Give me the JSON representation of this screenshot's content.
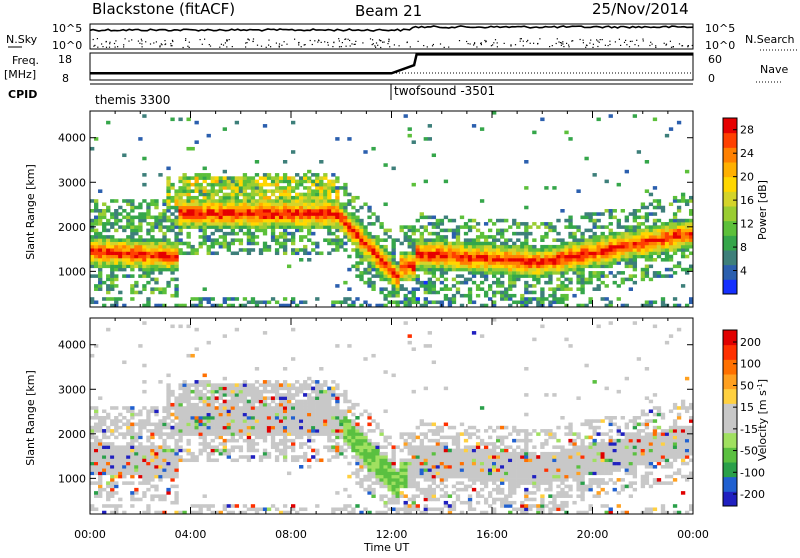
{
  "header": {
    "title": "Blackstone (fitACF)",
    "beam": "Beam 21",
    "date": "25/Nov/2014"
  },
  "param_panels": {
    "nsky_label": "N.Sky",
    "nsky_ticks": [
      "10^5",
      "10^0"
    ],
    "nsearch_label": "N.Search",
    "nsearch_ticks": [
      "10^5",
      "10^0"
    ],
    "freq_label": "Freq.",
    "freq_unit": "[MHz]",
    "freq_ticks": [
      "18",
      "8"
    ],
    "nave_label": "Nave",
    "nave_ticks": [
      "60",
      "0"
    ],
    "cpid_label": "CPID",
    "modes": [
      {
        "name": "themis 3300",
        "start_hour": 0
      },
      {
        "name": "twofsound -3501",
        "start_hour": 12.0
      }
    ],
    "freq_series": [
      {
        "hour": 0,
        "mhz": 10.5
      },
      {
        "hour": 12.0,
        "mhz": 10.5
      },
      {
        "hour": 12.9,
        "mhz": 13.5
      },
      {
        "hour": 13.0,
        "mhz": 17.5
      },
      {
        "hour": 24,
        "mhz": 17.5
      }
    ]
  },
  "chart_data": [
    {
      "type": "heatmap",
      "name": "Power",
      "xlabel": "Time UT",
      "ylabel": "Slant Range [km]",
      "xlim": [
        0,
        24
      ],
      "ylim": [
        200,
        4600
      ],
      "x_ticks": [
        "00:00",
        "04:00",
        "08:00",
        "12:00",
        "16:00",
        "20:00",
        "00:00"
      ],
      "y_ticks": [
        1000,
        2000,
        3000,
        4000
      ],
      "colorbar": {
        "label": "Power [dB]",
        "ticks": [
          4,
          8,
          12,
          16,
          20,
          24,
          28
        ],
        "range": [
          0,
          30
        ],
        "colors": [
          "#1530ff",
          "#2b5fae",
          "#3d7f7a",
          "#35a64a",
          "#5cc03a",
          "#9acd32",
          "#d4d42a",
          "#ffd700",
          "#ffb000",
          "#ff8000",
          "#ff4000",
          "#e60000"
        ]
      },
      "features": [
        {
          "desc": "main band",
          "hour_start": 0,
          "hour_end": 3,
          "range_km": [
            1200,
            1700
          ],
          "power_db": 22
        },
        {
          "desc": "midnight dip",
          "hour_start": 10.0,
          "hour_end": 12.5,
          "range_km": [
            700,
            1500
          ],
          "power_db": 18
        },
        {
          "desc": "afternoon band",
          "hour_start": 13,
          "hour_end": 23,
          "range_km": [
            900,
            1900
          ],
          "power_db": 20
        }
      ]
    },
    {
      "type": "heatmap",
      "name": "Velocity",
      "xlabel": "Time UT",
      "ylabel": "Slant Range [km]",
      "xlim": [
        0,
        24
      ],
      "ylim": [
        200,
        4600
      ],
      "x_ticks": [
        "00:00",
        "04:00",
        "08:00",
        "12:00",
        "16:00",
        "20:00",
        "00:00"
      ],
      "y_ticks": [
        1000,
        2000,
        3000,
        4000
      ],
      "colorbar": {
        "label": "Velocity [m s",
        "label_sup": "-1",
        "label_end": "]",
        "ticks": [
          "200",
          "100",
          "50",
          "15",
          "-15",
          "-50",
          "-100",
          "-200"
        ],
        "colors": [
          "#2020c0",
          "#2060d0",
          "#2aa04a",
          "#5ac040",
          "#a0e060",
          "#c8c8c8",
          "#c8c8c8",
          "#ffd040",
          "#ffa020",
          "#ff7000",
          "#ff3000",
          "#e00000"
        ]
      }
    }
  ]
}
